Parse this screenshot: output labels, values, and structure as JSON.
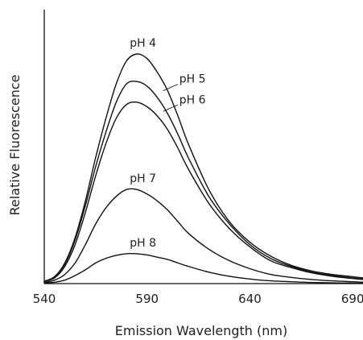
{
  "chart_data": {
    "type": "line",
    "xlabel": "Emission Wavelength (nm)",
    "ylabel": "Relative Fluorescence",
    "x_ticks": [
      540,
      590,
      640,
      690
    ],
    "xlim": [
      540,
      695
    ],
    "ylim": [
      0,
      1
    ],
    "grid": false,
    "legend": "inline labels",
    "x": [
      540,
      545,
      550,
      555,
      560,
      565,
      570,
      575,
      580,
      585,
      590,
      595,
      600,
      605,
      610,
      620,
      630,
      640,
      650,
      660,
      670,
      680,
      690,
      695
    ],
    "series": [
      {
        "name": "pH 4",
        "values": [
          0.01,
          0.03,
          0.09,
          0.2,
          0.36,
          0.55,
          0.72,
          0.87,
          0.97,
          1.0,
          0.98,
          0.92,
          0.84,
          0.73,
          0.61,
          0.41,
          0.27,
          0.18,
          0.12,
          0.08,
          0.055,
          0.04,
          0.03,
          0.025
        ]
      },
      {
        "name": "pH 5",
        "values": [
          0.01,
          0.03,
          0.085,
          0.19,
          0.34,
          0.51,
          0.66,
          0.79,
          0.87,
          0.88,
          0.86,
          0.81,
          0.74,
          0.65,
          0.55,
          0.38,
          0.26,
          0.17,
          0.11,
          0.075,
          0.05,
          0.035,
          0.025,
          0.02
        ]
      },
      {
        "name": "pH 6",
        "values": [
          0.01,
          0.025,
          0.075,
          0.17,
          0.31,
          0.47,
          0.61,
          0.72,
          0.78,
          0.79,
          0.77,
          0.73,
          0.67,
          0.59,
          0.5,
          0.35,
          0.24,
          0.16,
          0.1,
          0.07,
          0.047,
          0.032,
          0.022,
          0.018
        ]
      },
      {
        "name": "pH 7",
        "values": [
          0.005,
          0.015,
          0.04,
          0.09,
          0.17,
          0.26,
          0.33,
          0.38,
          0.41,
          0.41,
          0.39,
          0.36,
          0.32,
          0.27,
          0.22,
          0.15,
          0.1,
          0.065,
          0.04,
          0.027,
          0.018,
          0.012,
          0.008,
          0.006
        ]
      },
      {
        "name": "pH 8",
        "values": [
          0.002,
          0.006,
          0.015,
          0.035,
          0.06,
          0.09,
          0.11,
          0.123,
          0.13,
          0.13,
          0.125,
          0.115,
          0.105,
          0.09,
          0.075,
          0.05,
          0.032,
          0.02,
          0.012,
          0.008,
          0.005,
          0.003,
          0.002,
          0.002
        ]
      }
    ]
  }
}
